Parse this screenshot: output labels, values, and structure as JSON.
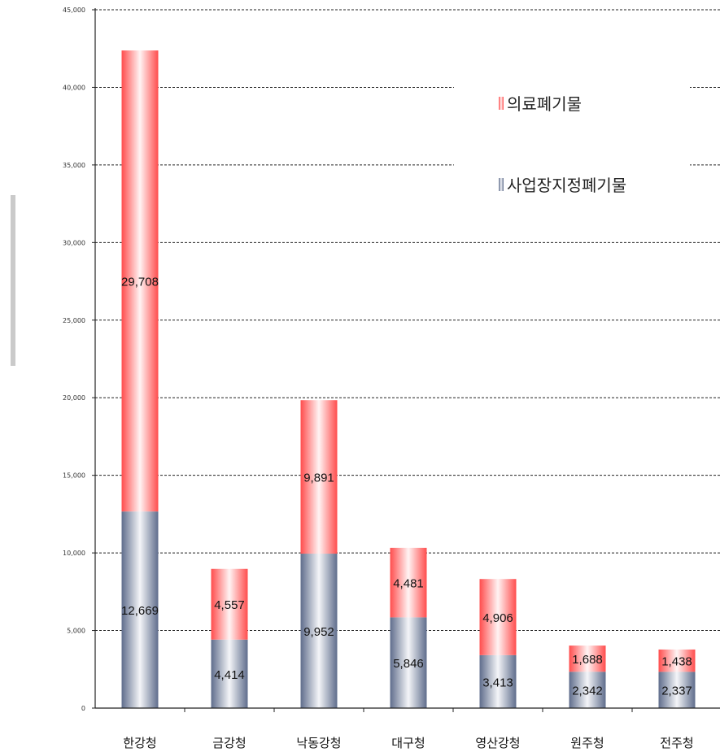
{
  "chart_data": {
    "type": "bar",
    "stacked": true,
    "categories": [
      "한강청",
      "금강청",
      "낙동강청",
      "대구청",
      "영산강청",
      "원주청",
      "전주청"
    ],
    "series": [
      {
        "name": "사업장지정폐기물",
        "values": [
          12669,
          4414,
          9952,
          5846,
          3413,
          2342,
          2337
        ],
        "labels": [
          "12,669",
          "4,414",
          "9,952",
          "5,846",
          "3,413",
          "2,342",
          "2,337"
        ]
      },
      {
        "name": "의료폐기물",
        "values": [
          29708,
          4557,
          9891,
          4481,
          4906,
          1688,
          1438
        ],
        "labels": [
          "29,708",
          "4,557",
          "9,891",
          "4,481",
          "4,906",
          "1,688",
          "1,438"
        ]
      }
    ],
    "ylim": [
      0,
      45000
    ],
    "yticks": [
      0,
      5000,
      10000,
      15000,
      20000,
      25000,
      30000,
      35000,
      40000,
      45000
    ],
    "ytick_labels": [
      "0",
      "5,000",
      "10,000",
      "15,000",
      "20,000",
      "25,000",
      "30,000",
      "35,000",
      "40,000",
      "45,000"
    ],
    "grid": true,
    "legend": "top-right",
    "colors": {
      "사업장지정폐기물": "#6b7896",
      "의료폐기물": "#ff5a5a"
    }
  }
}
